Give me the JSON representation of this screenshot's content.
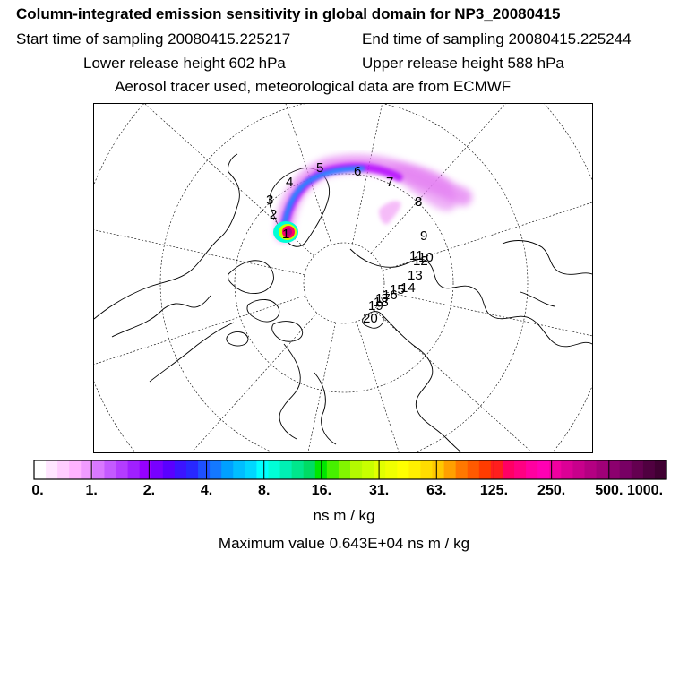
{
  "header": {
    "title": "Column-integrated emission sensitivity in global domain for NP3_20080415",
    "start_time": "Start time of sampling 20080415.225217",
    "end_time": "End time of sampling 20080415.225244",
    "lower_height": "Lower release height  602 hPa",
    "upper_height": "Upper release height  588 hPa",
    "info": "Aerosol tracer used, meteorological data are from ECMWF"
  },
  "map": {
    "projection": "polar stereographic (north)",
    "trajectory_day_labels": [
      "1",
      "2",
      "3",
      "4",
      "5",
      "6",
      "7",
      "8",
      "9",
      "10",
      "11",
      "12",
      "13",
      "14",
      "15",
      "16",
      "17",
      "18",
      "19",
      "20"
    ],
    "colors": {
      "coastline": "#000000",
      "grid": "#000000",
      "plume_outer": "#e37cf2",
      "plume_mid": "#b000ff",
      "plume_core": "#00a0ff",
      "source_core": "#b4006e"
    }
  },
  "colorbar": {
    "tick_labels": [
      "0.",
      "1.",
      "2.",
      "4.",
      "8.",
      "16.",
      "31.",
      "63.",
      "125.",
      "250.",
      "500.",
      "1000."
    ],
    "colors": [
      "#ffffff",
      "#ffe6ff",
      "#ffcdff",
      "#ffb3ff",
      "#f09bff",
      "#d978ff",
      "#c45aff",
      "#b43cff",
      "#a020ff",
      "#9600ff",
      "#7800ff",
      "#5a00ff",
      "#3c14ff",
      "#2828ff",
      "#1e50ff",
      "#1478ff",
      "#00a0ff",
      "#00beff",
      "#00d7ff",
      "#00ffff",
      "#00ffd7",
      "#00f0b4",
      "#00e68c",
      "#00dc64",
      "#00e600",
      "#46f000",
      "#82f500",
      "#b4fa00",
      "#c8ff00",
      "#e1ff00",
      "#f0ff00",
      "#ffff00",
      "#fff000",
      "#ffdc00",
      "#ffc800",
      "#ffa000",
      "#ff7800",
      "#ff5a00",
      "#ff3c00",
      "#ff1e1e",
      "#ff0064",
      "#ff0082",
      "#ff00a0",
      "#ff00b4",
      "#f000a0",
      "#dc0096",
      "#c8008c",
      "#b40082",
      "#a00078",
      "#8c006e",
      "#780064",
      "#640050",
      "#500040",
      "#400032"
    ],
    "units": "ns m / kg",
    "max_value": "Maximum value  0.643E+04 ns m / kg"
  }
}
